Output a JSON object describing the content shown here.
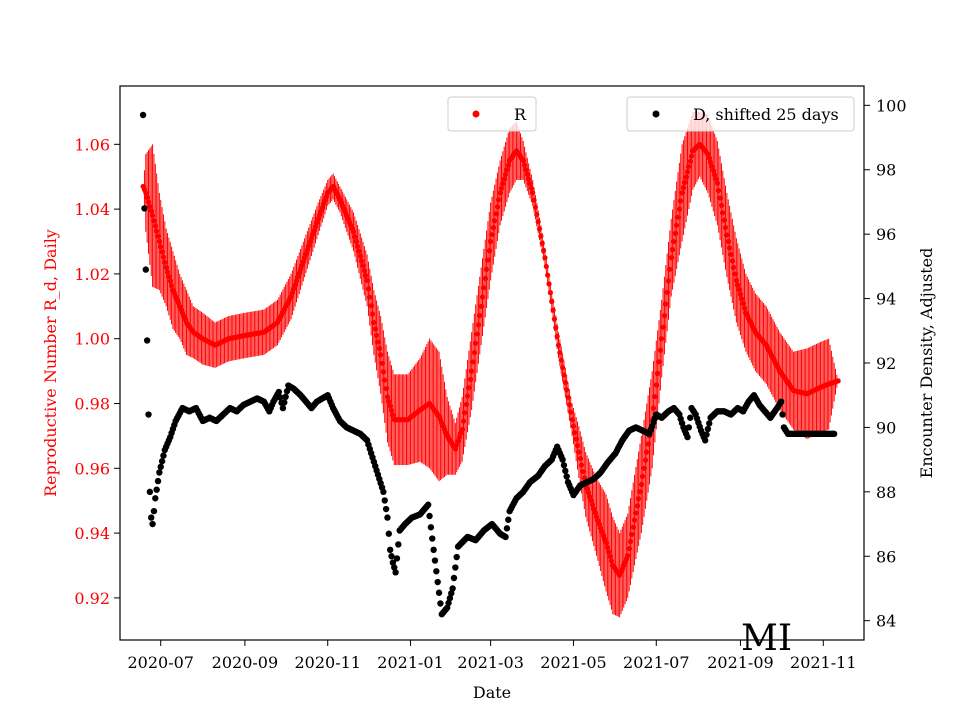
{
  "chart_data": {
    "type": "scatter",
    "xlabel": "Date",
    "ylabel_left": "Reproductive Number R_d, Daily",
    "ylabel_right": "Encounter Density, Adjusted",
    "region_label": "MI",
    "x_range": [
      "2020-06-01",
      "2021-12-01"
    ],
    "x_ticks": [
      "2020-07",
      "2020-09",
      "2020-11",
      "2021-01",
      "2021-03",
      "2021-05",
      "2021-07",
      "2021-09",
      "2021-11"
    ],
    "ylim_left": [
      0.907,
      1.078
    ],
    "ylim_right": [
      83.4,
      100.6
    ],
    "y_ticks_left": [
      "0.92",
      "0.94",
      "0.96",
      "0.98",
      "1.00",
      "1.02",
      "1.04",
      "1.06"
    ],
    "y_ticks_right": [
      "84",
      "86",
      "88",
      "90",
      "92",
      "94",
      "96",
      "98",
      "100"
    ],
    "grid": false,
    "colors": {
      "r_series": "#ff0000",
      "d_series": "#000000",
      "left_axis": "#ff0000",
      "right_axis": "#000000"
    },
    "legends": [
      {
        "label": "R",
        "color": "#ff0000",
        "placement": "top-center"
      },
      {
        "label": "D, shifted 25 days",
        "color": "#000000",
        "placement": "top-right"
      }
    ],
    "series": [
      {
        "name": "R",
        "axis": "left",
        "color": "#ff0000",
        "points": [
          [
            "2020-06-18",
            1.047,
            0.0
          ],
          [
            "2020-06-20",
            1.045,
            0.012
          ],
          [
            "2020-06-25",
            1.038,
            0.022
          ],
          [
            "2020-06-30",
            1.03,
            0.015
          ],
          [
            "2020-07-05",
            1.022,
            0.012
          ],
          [
            "2020-07-10",
            1.015,
            0.012
          ],
          [
            "2020-07-15",
            1.01,
            0.01
          ],
          [
            "2020-07-20",
            1.005,
            0.01
          ],
          [
            "2020-07-25",
            1.002,
            0.008
          ],
          [
            "2020-08-01",
            1.0,
            0.008
          ],
          [
            "2020-08-10",
            0.998,
            0.007
          ],
          [
            "2020-08-20",
            1.0,
            0.007
          ],
          [
            "2020-09-01",
            1.001,
            0.007
          ],
          [
            "2020-09-15",
            1.002,
            0.007
          ],
          [
            "2020-09-25",
            1.005,
            0.007
          ],
          [
            "2020-10-05",
            1.013,
            0.007
          ],
          [
            "2020-10-15",
            1.025,
            0.006
          ],
          [
            "2020-10-25",
            1.037,
            0.005
          ],
          [
            "2020-11-01",
            1.045,
            0.004
          ],
          [
            "2020-11-05",
            1.047,
            0.004
          ],
          [
            "2020-11-10",
            1.043,
            0.004
          ],
          [
            "2020-11-20",
            1.033,
            0.006
          ],
          [
            "2020-11-30",
            1.018,
            0.008
          ],
          [
            "2020-12-05",
            1.005,
            0.01
          ],
          [
            "2020-12-10",
            0.995,
            0.012
          ],
          [
            "2020-12-15",
            0.982,
            0.014
          ],
          [
            "2020-12-20",
            0.975,
            0.014
          ],
          [
            "2020-12-30",
            0.975,
            0.014
          ],
          [
            "2021-01-08",
            0.978,
            0.016
          ],
          [
            "2021-01-15",
            0.98,
            0.02
          ],
          [
            "2021-01-22",
            0.976,
            0.02
          ],
          [
            "2021-01-28",
            0.97,
            0.012
          ],
          [
            "2021-02-03",
            0.966,
            0.008
          ],
          [
            "2021-02-08",
            0.972,
            0.01
          ],
          [
            "2021-02-15",
            0.99,
            0.012
          ],
          [
            "2021-02-22",
            1.01,
            0.012
          ],
          [
            "2021-03-01",
            1.03,
            0.012
          ],
          [
            "2021-03-08",
            1.045,
            0.01
          ],
          [
            "2021-03-15",
            1.055,
            0.01
          ],
          [
            "2021-03-20",
            1.058,
            0.009
          ],
          [
            "2021-03-25",
            1.055,
            0.006
          ],
          [
            "2021-04-01",
            1.045,
            0.004
          ],
          [
            "2021-04-10",
            1.025,
            0.003
          ],
          [
            "2021-04-20",
            0.998,
            0.004
          ],
          [
            "2021-04-30",
            0.975,
            0.005
          ],
          [
            "2021-05-05",
            0.965,
            0.008
          ],
          [
            "2021-05-10",
            0.955,
            0.01
          ],
          [
            "2021-05-18",
            0.945,
            0.012
          ],
          [
            "2021-05-25",
            0.937,
            0.015
          ],
          [
            "2021-05-30",
            0.93,
            0.015
          ],
          [
            "2021-06-04",
            0.927,
            0.013
          ],
          [
            "2021-06-10",
            0.933,
            0.013
          ],
          [
            "2021-06-20",
            0.955,
            0.015
          ],
          [
            "2021-06-28",
            0.975,
            0.015
          ],
          [
            "2021-07-05",
            1.0,
            0.012
          ],
          [
            "2021-07-12",
            1.025,
            0.012
          ],
          [
            "2021-07-20",
            1.045,
            0.015
          ],
          [
            "2021-07-28",
            1.058,
            0.012
          ],
          [
            "2021-08-02",
            1.06,
            0.01
          ],
          [
            "2021-08-08",
            1.057,
            0.012
          ],
          [
            "2021-08-15",
            1.048,
            0.013
          ],
          [
            "2021-08-22",
            1.032,
            0.013
          ],
          [
            "2021-08-29",
            1.018,
            0.013
          ],
          [
            "2021-09-05",
            1.008,
            0.012
          ],
          [
            "2021-09-12",
            1.002,
            0.012
          ],
          [
            "2021-09-20",
            0.998,
            0.012
          ],
          [
            "2021-09-30",
            0.99,
            0.012
          ],
          [
            "2021-10-10",
            0.984,
            0.012
          ],
          [
            "2021-10-20",
            0.983,
            0.014
          ],
          [
            "2021-10-30",
            0.985,
            0.014
          ],
          [
            "2021-11-05",
            0.986,
            0.014
          ],
          [
            "2021-11-12",
            0.987,
            0.0
          ]
        ]
      },
      {
        "name": "D, shifted 25 days",
        "axis": "right",
        "color": "#000000",
        "points": [
          [
            "2020-06-18",
            99.7
          ],
          [
            "2020-06-19",
            96.8
          ],
          [
            "2020-06-20",
            94.9
          ],
          [
            "2020-06-21",
            92.7
          ],
          [
            "2020-06-22",
            90.4
          ],
          [
            "2020-06-23",
            88.0
          ],
          [
            "2020-06-24",
            87.2
          ],
          [
            "2020-06-25",
            87.0
          ],
          [
            "2020-06-27",
            87.8
          ],
          [
            "2020-06-30",
            88.6
          ],
          [
            "2020-07-04",
            89.3
          ],
          [
            "2020-07-08",
            89.7
          ],
          [
            "2020-07-12",
            90.2
          ],
          [
            "2020-07-17",
            90.6
          ],
          [
            "2020-07-22",
            90.5
          ],
          [
            "2020-07-27",
            90.6
          ],
          [
            "2020-08-01",
            90.2
          ],
          [
            "2020-08-06",
            90.3
          ],
          [
            "2020-08-11",
            90.2
          ],
          [
            "2020-08-16",
            90.4
          ],
          [
            "2020-08-21",
            90.6
          ],
          [
            "2020-08-26",
            90.5
          ],
          [
            "2020-08-31",
            90.7
          ],
          [
            "2020-09-05",
            90.8
          ],
          [
            "2020-09-10",
            90.9
          ],
          [
            "2020-09-15",
            90.8
          ],
          [
            "2020-09-19",
            90.5
          ],
          [
            "2020-09-22",
            90.8
          ],
          [
            "2020-09-26",
            91.1
          ],
          [
            "2020-09-29",
            90.6
          ],
          [
            "2020-10-03",
            91.3
          ],
          [
            "2020-10-07",
            91.2
          ],
          [
            "2020-10-12",
            91.0
          ],
          [
            "2020-10-16",
            90.8
          ],
          [
            "2020-10-20",
            90.6
          ],
          [
            "2020-10-24",
            90.8
          ],
          [
            "2020-10-28",
            90.9
          ],
          [
            "2020-11-01",
            91.0
          ],
          [
            "2020-11-05",
            90.6
          ],
          [
            "2020-11-10",
            90.2
          ],
          [
            "2020-11-15",
            90.0
          ],
          [
            "2020-11-20",
            89.9
          ],
          [
            "2020-11-25",
            89.8
          ],
          [
            "2020-11-30",
            89.6
          ],
          [
            "2020-12-03",
            89.2
          ],
          [
            "2020-12-06",
            88.8
          ],
          [
            "2020-12-09",
            88.4
          ],
          [
            "2020-12-12",
            88.0
          ],
          [
            "2020-12-15",
            87.2
          ],
          [
            "2020-12-17",
            86.2
          ],
          [
            "2020-12-19",
            85.8
          ],
          [
            "2020-12-21",
            85.5
          ],
          [
            "2020-12-24",
            86.8
          ],
          [
            "2020-12-28",
            87.0
          ],
          [
            "2021-01-02",
            87.2
          ],
          [
            "2021-01-08",
            87.3
          ],
          [
            "2021-01-14",
            87.6
          ],
          [
            "2021-01-18",
            86.2
          ],
          [
            "2021-01-21",
            85.2
          ],
          [
            "2021-01-24",
            84.2
          ],
          [
            "2021-01-28",
            84.4
          ],
          [
            "2021-02-01",
            85.0
          ],
          [
            "2021-02-05",
            86.3
          ],
          [
            "2021-02-12",
            86.6
          ],
          [
            "2021-02-18",
            86.5
          ],
          [
            "2021-02-24",
            86.8
          ],
          [
            "2021-03-02",
            87.0
          ],
          [
            "2021-03-08",
            86.7
          ],
          [
            "2021-03-12",
            86.6
          ],
          [
            "2021-03-15",
            87.4
          ],
          [
            "2021-03-20",
            87.8
          ],
          [
            "2021-03-25",
            88.0
          ],
          [
            "2021-03-30",
            88.3
          ],
          [
            "2021-04-05",
            88.5
          ],
          [
            "2021-04-10",
            88.8
          ],
          [
            "2021-04-15",
            89.0
          ],
          [
            "2021-04-19",
            89.4
          ],
          [
            "2021-04-23",
            89.0
          ],
          [
            "2021-04-27",
            88.3
          ],
          [
            "2021-05-01",
            87.9
          ],
          [
            "2021-05-06",
            88.2
          ],
          [
            "2021-05-11",
            88.3
          ],
          [
            "2021-05-16",
            88.4
          ],
          [
            "2021-05-21",
            88.6
          ],
          [
            "2021-05-26",
            88.9
          ],
          [
            "2021-06-01",
            89.2
          ],
          [
            "2021-06-06",
            89.6
          ],
          [
            "2021-06-11",
            89.9
          ],
          [
            "2021-06-16",
            90.0
          ],
          [
            "2021-06-21",
            89.9
          ],
          [
            "2021-06-26",
            89.8
          ],
          [
            "2021-07-01",
            90.4
          ],
          [
            "2021-07-05",
            90.3
          ],
          [
            "2021-07-10",
            90.5
          ],
          [
            "2021-07-14",
            90.6
          ],
          [
            "2021-07-18",
            90.4
          ],
          [
            "2021-07-21",
            90.0
          ],
          [
            "2021-07-24",
            89.7
          ],
          [
            "2021-07-27",
            90.6
          ],
          [
            "2021-07-30",
            90.4
          ],
          [
            "2021-08-03",
            89.9
          ],
          [
            "2021-08-06",
            89.6
          ],
          [
            "2021-08-10",
            90.3
          ],
          [
            "2021-08-15",
            90.5
          ],
          [
            "2021-08-20",
            90.5
          ],
          [
            "2021-08-25",
            90.4
          ],
          [
            "2021-08-30",
            90.6
          ],
          [
            "2021-09-03",
            90.5
          ],
          [
            "2021-09-07",
            90.8
          ],
          [
            "2021-09-11",
            91.0
          ],
          [
            "2021-09-15",
            90.7
          ],
          [
            "2021-09-19",
            90.5
          ],
          [
            "2021-09-23",
            90.3
          ],
          [
            "2021-09-28",
            90.6
          ],
          [
            "2021-10-01",
            90.8
          ],
          [
            "2021-10-03",
            90.0
          ],
          [
            "2021-10-06",
            89.8
          ],
          [
            "2021-10-12",
            89.8
          ],
          [
            "2021-10-19",
            89.8
          ],
          [
            "2021-10-26",
            89.8
          ],
          [
            "2021-11-02",
            89.8
          ],
          [
            "2021-11-09",
            89.8
          ]
        ]
      }
    ]
  }
}
